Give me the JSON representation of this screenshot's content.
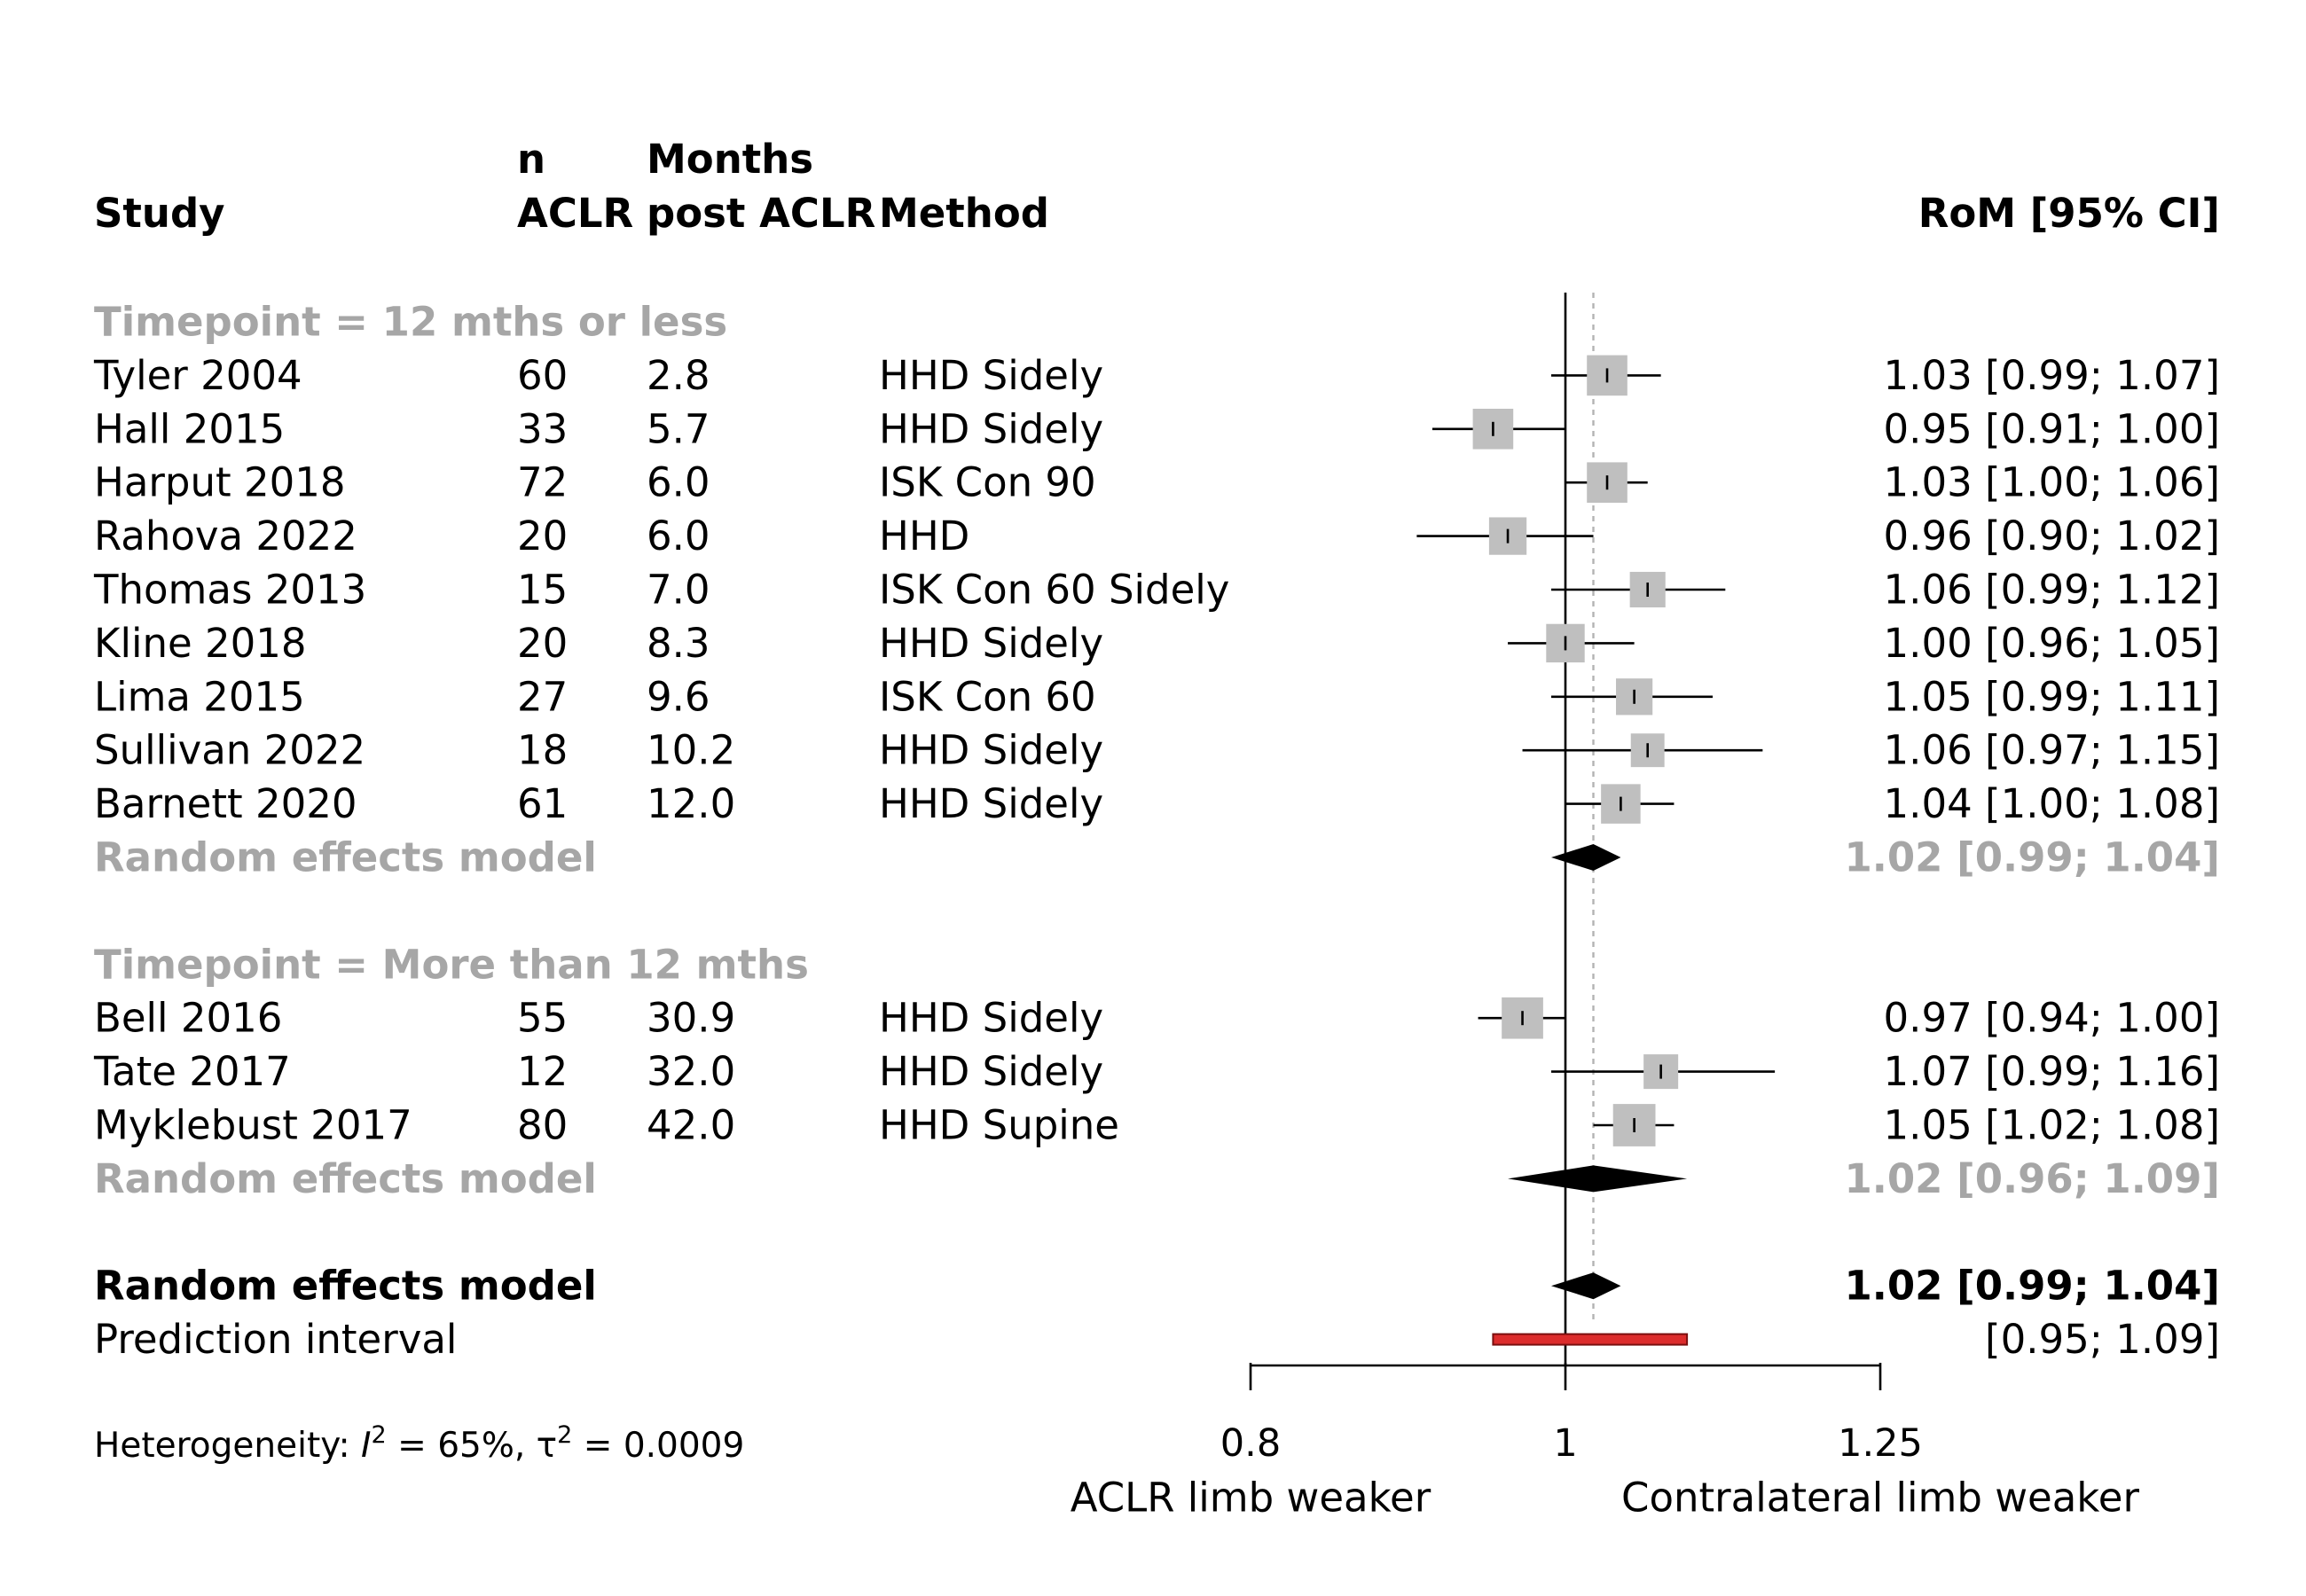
{
  "chart_data": {
    "type": "forest",
    "title": "",
    "columns": {
      "study": "Study",
      "n_line1": "n",
      "n_line2": "ACLR",
      "months_line1": "Months",
      "months_line2": "post ACLR",
      "method": "Method",
      "effect": "RoM [95% CI]"
    },
    "xscale": "log",
    "xlim": [
      0.8,
      1.25
    ],
    "xticks": [
      0.8,
      1,
      1.25
    ],
    "xtick_labels": [
      "0.8",
      "1",
      "1.25"
    ],
    "xlabel_left": "ACLR limb weaker",
    "xlabel_right": "Contralateral limb weaker",
    "reference_line": 1,
    "pooled_line": 1.02,
    "subgroups": [
      {
        "label": "Timepoint = 12 mths or less",
        "studies": [
          {
            "study": "Tyler 2004",
            "n": "60",
            "months": "2.8",
            "method": "HHD Sidely",
            "est": 1.03,
            "lo": 0.99,
            "hi": 1.07,
            "label": "1.03 [0.99; 1.07]",
            "weight": 0.8
          },
          {
            "study": "Hall 2015",
            "n": "33",
            "months": "5.7",
            "method": "HHD Sidely",
            "est": 0.95,
            "lo": 0.91,
            "hi": 1.0,
            "label": "0.95 [0.91; 1.00]",
            "weight": 0.8
          },
          {
            "study": "Harput 2018",
            "n": "72",
            "months": "6.0",
            "method": "ISK Con 90",
            "est": 1.03,
            "lo": 1.0,
            "hi": 1.06,
            "label": "1.03 [1.00; 1.06]",
            "weight": 0.8
          },
          {
            "study": "Rahova 2022",
            "n": "20",
            "months": "6.0",
            "method": "HHD",
            "est": 0.96,
            "lo": 0.9,
            "hi": 1.02,
            "label": "0.96 [0.90; 1.02]",
            "weight": 0.65
          },
          {
            "study": "Thomas 2013",
            "n": "15",
            "months": "7.0",
            "method": "ISK Con 60 Sidely",
            "est": 1.06,
            "lo": 0.99,
            "hi": 1.12,
            "label": "1.06 [0.99; 1.12]",
            "weight": 0.55
          },
          {
            "study": "Kline 2018",
            "n": "20",
            "months": "8.3",
            "method": "HHD Sidely",
            "est": 1.0,
            "lo": 0.96,
            "hi": 1.05,
            "label": "1.00 [0.96; 1.05]",
            "weight": 0.7
          },
          {
            "study": "Lima 2015",
            "n": "27",
            "months": "9.6",
            "method": "ISK Con 60",
            "est": 1.05,
            "lo": 0.99,
            "hi": 1.11,
            "label": "1.05 [0.99; 1.11]",
            "weight": 0.6
          },
          {
            "study": "Sullivan 2022",
            "n": "18",
            "months": "10.2",
            "method": "HHD Sidely",
            "est": 1.06,
            "lo": 0.97,
            "hi": 1.15,
            "label": "1.06 [0.97; 1.15]",
            "weight": 0.45
          },
          {
            "study": "Barnett 2020",
            "n": "61",
            "months": "12.0",
            "method": "HHD Sidely",
            "est": 1.04,
            "lo": 1.0,
            "hi": 1.08,
            "label": "1.04 [1.00; 1.08]",
            "weight": 0.75
          }
        ],
        "summary": {
          "label": "Random effects model",
          "est": 1.02,
          "lo": 0.99,
          "hi": 1.04,
          "text": "1.02 [0.99; 1.04]"
        }
      },
      {
        "label": "Timepoint = More than 12 mths",
        "studies": [
          {
            "study": "Bell 2016",
            "n": "55",
            "months": "30.9",
            "method": "HHD Sidely",
            "est": 0.97,
            "lo": 0.94,
            "hi": 1.0,
            "label": "0.97 [0.94; 1.00]",
            "weight": 0.85
          },
          {
            "study": "Tate 2017",
            "n": "12",
            "months": "32.0",
            "method": "HHD Sidely",
            "est": 1.07,
            "lo": 0.99,
            "hi": 1.16,
            "label": "1.07 [0.99; 1.16]",
            "weight": 0.5
          },
          {
            "study": "Myklebust 2017",
            "n": "80",
            "months": "42.0",
            "method": "HHD Supine",
            "est": 1.05,
            "lo": 1.02,
            "hi": 1.08,
            "label": "1.05 [1.02; 1.08]",
            "weight": 0.9
          }
        ],
        "summary": {
          "label": "Random effects model",
          "est": 1.02,
          "lo": 0.96,
          "hi": 1.09,
          "text": "1.02 [0.96; 1.09]"
        }
      }
    ],
    "overall": {
      "label": "Random effects model",
      "est": 1.02,
      "lo": 0.99,
      "hi": 1.04,
      "text": "1.02 [0.99; 1.04]"
    },
    "prediction_interval": {
      "label": "Prediction interval",
      "lo": 0.95,
      "hi": 1.09,
      "text": "[0.95; 1.09]"
    },
    "heterogeneity": {
      "prefix": "Heterogeneity: ",
      "i2_symbol": "I",
      "i2_value": " = 65%, ",
      "tau2_symbol": "τ",
      "tau2_value": " = 0.0009",
      "superscript": "2"
    },
    "colors": {
      "subgroup_gray": "#a6a6a6",
      "box_gray": "#bfbfbf",
      "line": "#000000",
      "dotted": "#b3b3b3",
      "prediction_fill": "#dc2c2c",
      "prediction_stroke": "#7a0f0f"
    }
  }
}
